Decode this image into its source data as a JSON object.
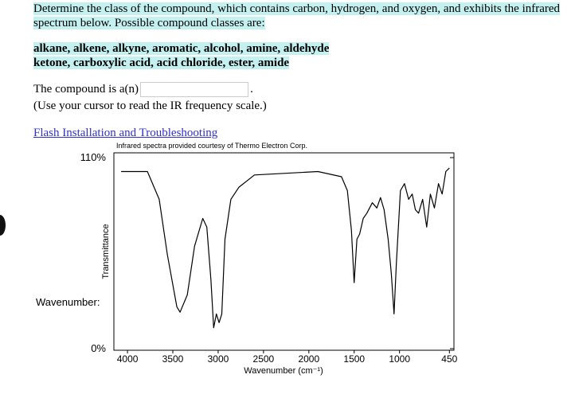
{
  "instructions": {
    "text": "Determine the class of the compound, which contains carbon, hydrogen, and oxygen, and exhibits the infrared spectrum below. Possible compound classes are:",
    "classes": [
      "alkane, alkene, alkyne, aromatic, alcohol, amine, aldehyde",
      "ketone, carboxylic acid, acid chloride, ester, amide"
    ]
  },
  "prompt": {
    "label": "The compound is a(n)",
    "suffix": ".",
    "hint": "(Use your cursor to read the IR frequency scale.)"
  },
  "link": "Flash Installation and Troubleshooting",
  "chart_data": {
    "type": "line",
    "credit": "Infrared spectra provided courtesy of Thermo Electron Corp.",
    "x_label": "Wavenumber (cm⁻¹)",
    "y_label": "Transmittance",
    "readout_label": "Wavenumber:",
    "color": "#000000",
    "x": [
      4070,
      3780,
      3650,
      3560,
      3455,
      3420,
      3340,
      3260,
      3170,
      3125,
      3080,
      3050,
      3020,
      2990,
      2960,
      2925,
      2860,
      2770,
      2600,
      1900,
      1640,
      1575,
      1530,
      1500,
      1470,
      1440,
      1400,
      1360,
      1300,
      1250,
      1210,
      1170,
      1125,
      1090,
      1060,
      1035,
      990,
      945,
      900,
      860,
      825,
      790,
      745,
      700,
      660,
      615,
      570,
      530,
      490,
      450
    ],
    "values": [
      102,
      102,
      86,
      54,
      24,
      21,
      31,
      59,
      75,
      70,
      40,
      12,
      20,
      15,
      20,
      63,
      86,
      93,
      100,
      102,
      99,
      91,
      68,
      38,
      63,
      66,
      75,
      78,
      84,
      81,
      87,
      80,
      63,
      43,
      20,
      49,
      91,
      95,
      86,
      89,
      80,
      78,
      86,
      70,
      89,
      81,
      95,
      89,
      102,
      104
    ],
    "xlim": [
      4150,
      400
    ],
    "xticks": [
      4000,
      3500,
      3000,
      2500,
      2000,
      1500,
      1000,
      450
    ],
    "ylim": [
      0,
      110
    ],
    "yticks": [
      {
        "value": 0,
        "label": "0%"
      },
      {
        "value": 110,
        "label": "110%"
      }
    ]
  }
}
